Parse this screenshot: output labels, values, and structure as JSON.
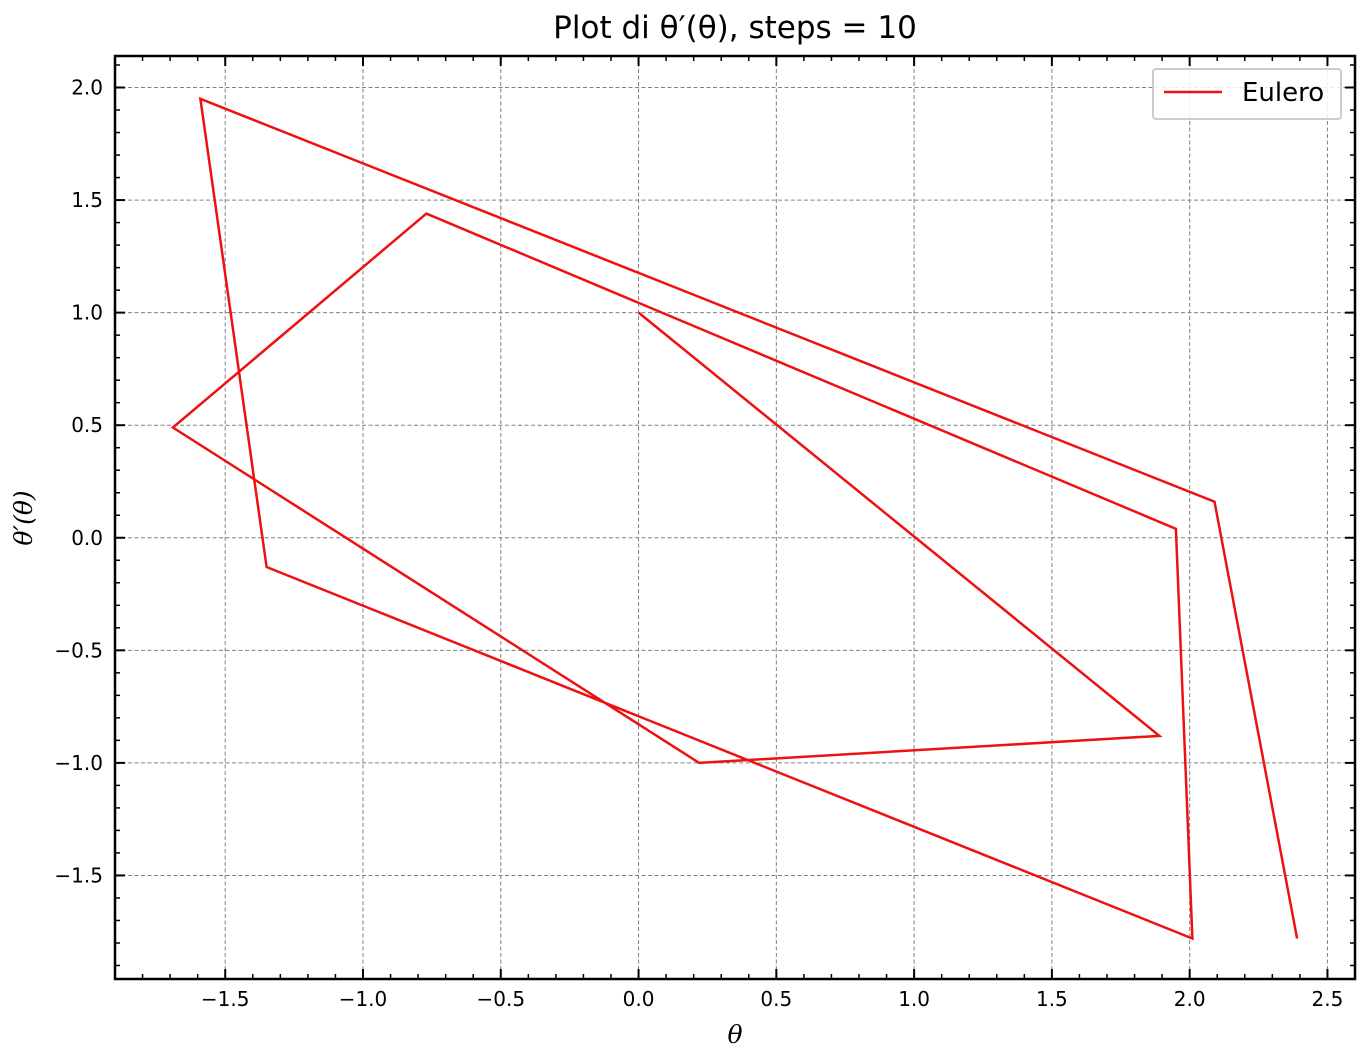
{
  "chart_data": {
    "type": "line",
    "title": "Plot di θ′(θ), steps = 10",
    "xlabel": "θ",
    "ylabel": "θ′(θ)",
    "xlim": [
      -1.9,
      2.6
    ],
    "ylim": [
      -1.96,
      2.14
    ],
    "xticks": [
      -1.5,
      -1.0,
      -0.5,
      0.0,
      0.5,
      1.0,
      1.5,
      2.0,
      2.5
    ],
    "yticks": [
      -1.5,
      -1.0,
      -0.5,
      0.0,
      0.5,
      1.0,
      1.5,
      2.0
    ],
    "xtick_labels": [
      "−1.5",
      "−1.0",
      "−0.5",
      "0.0",
      "0.5",
      "1.0",
      "1.5",
      "2.0",
      "2.5"
    ],
    "ytick_labels": [
      "−1.5",
      "−1.0",
      "−0.5",
      "0.0",
      "0.5",
      "1.0",
      "1.5",
      "2.0"
    ],
    "grid": true,
    "legend": "top-right",
    "series": [
      {
        "name": "Eulero",
        "color": "#ee1111",
        "x": [
          0.0,
          1.89,
          0.22,
          -1.69,
          -0.77,
          1.95,
          2.01,
          -1.35,
          -1.59,
          2.09,
          2.39
        ],
        "y": [
          1.0,
          -0.88,
          -1.0,
          0.49,
          1.44,
          0.04,
          -1.78,
          -0.13,
          1.95,
          0.16,
          -1.78
        ]
      }
    ]
  }
}
